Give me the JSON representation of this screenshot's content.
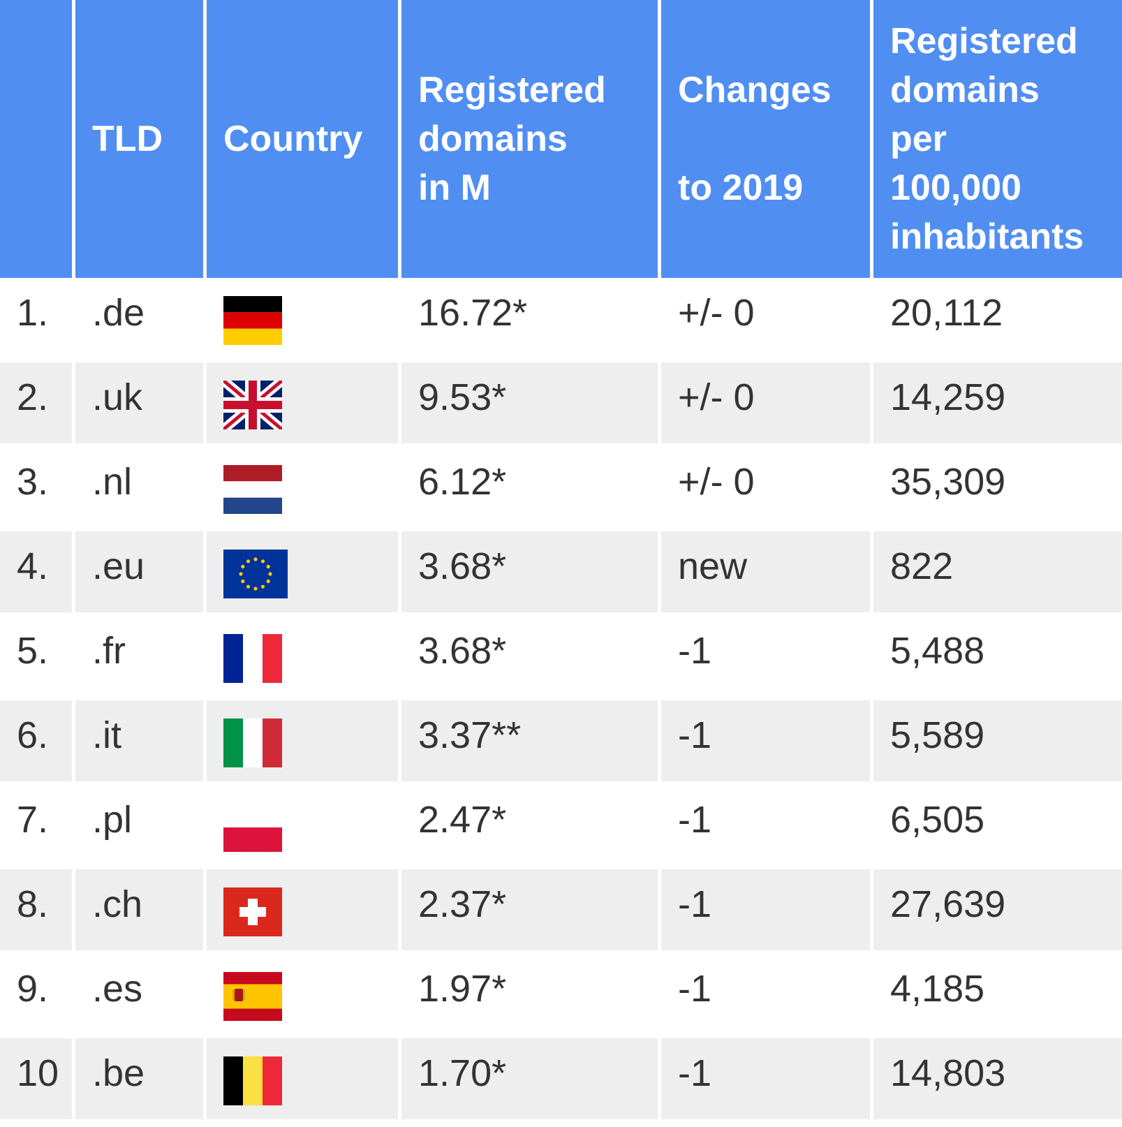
{
  "chart_data": {
    "type": "table",
    "columns": [
      "",
      "TLD",
      "Country",
      "Registered\ndomains\nin M",
      "Changes\n\nto 2019",
      "Registered\ndomains\nper\n100,000\ninhabitants"
    ],
    "rows": [
      {
        "rank": "1.",
        "tld": ".de",
        "flag": "germany-flag",
        "domains": "16.72*",
        "change": "+/- 0",
        "per_100k": "20,112"
      },
      {
        "rank": "2.",
        "tld": ".uk",
        "flag": "united-kingdom-flag",
        "domains": "9.53*",
        "change": "+/- 0",
        "per_100k": "14,259"
      },
      {
        "rank": "3.",
        "tld": ".nl",
        "flag": "netherlands-flag",
        "domains": "6.12*",
        "change": "+/- 0",
        "per_100k": "35,309"
      },
      {
        "rank": "4.",
        "tld": ".eu",
        "flag": "european-union-flag",
        "domains": "3.68*",
        "change": "new",
        "per_100k": "822"
      },
      {
        "rank": "5.",
        "tld": ".fr",
        "flag": "france-flag",
        "domains": "3.68*",
        "change": "-1",
        "per_100k": "5,488"
      },
      {
        "rank": "6.",
        "tld": ".it",
        "flag": "italy-flag",
        "domains": "3.37**",
        "change": "-1",
        "per_100k": "5,589"
      },
      {
        "rank": "7.",
        "tld": ".pl",
        "flag": "poland-flag",
        "domains": "2.47*",
        "change": "-1",
        "per_100k": "6,505"
      },
      {
        "rank": "8.",
        "tld": ".ch",
        "flag": "switzerland-flag",
        "domains": "2.37*",
        "change": "-1",
        "per_100k": "27,639"
      },
      {
        "rank": "9.",
        "tld": ".es",
        "flag": "spain-flag",
        "domains": "1.97*",
        "change": "-1",
        "per_100k": "4,185"
      },
      {
        "rank": "10",
        "tld": ".be",
        "flag": "belgium-flag",
        "domains": "1.70*",
        "change": "-1",
        "per_100k": "14,803"
      }
    ]
  },
  "colors": {
    "header_bg": "#508ef2",
    "header_text": "#ffffff",
    "body_text": "#333333",
    "row_even_bg": "#eeeeee",
    "row_odd_bg": "#ffffff"
  }
}
